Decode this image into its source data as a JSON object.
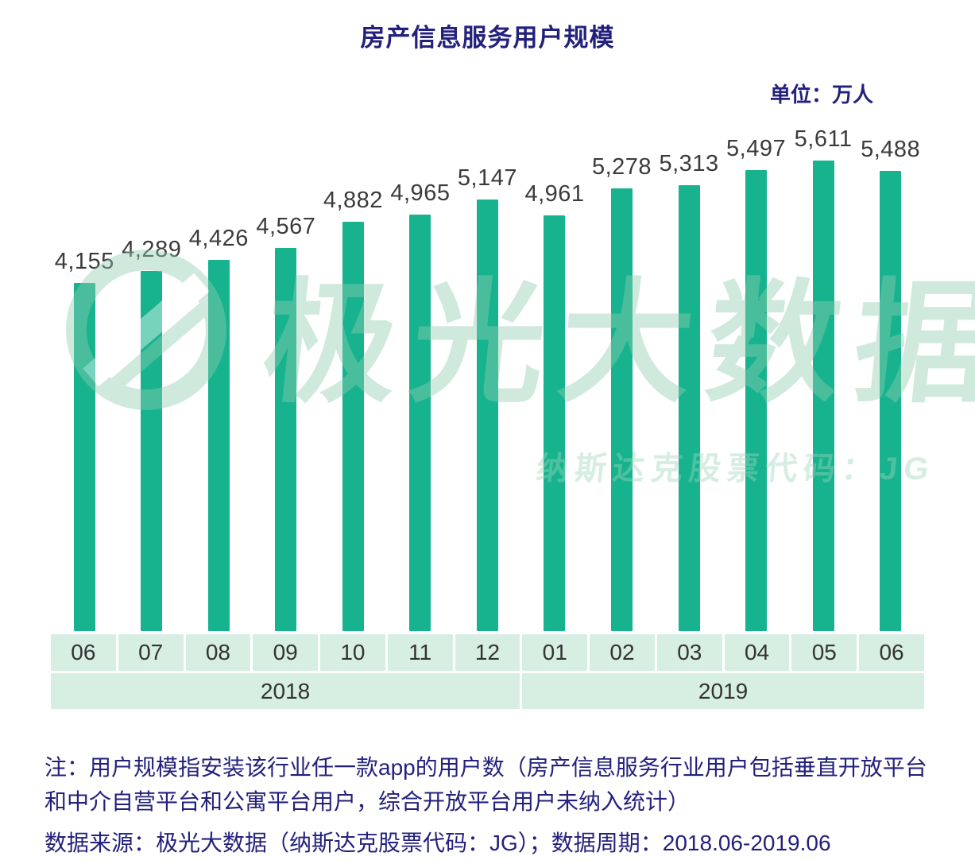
{
  "title": "房产信息服务用户规模",
  "unit_label": "单位：万人",
  "watermark": {
    "text": "极光大数据",
    "subtext": "纳斯达克股票代码：JG"
  },
  "chart_data": {
    "type": "bar",
    "title": "房产信息服务用户规模",
    "ylabel": "万人",
    "ylim": [
      0,
      5800
    ],
    "grid": false,
    "legend": "none",
    "bar_color": "#16b38e",
    "categories": [
      "06",
      "07",
      "08",
      "09",
      "10",
      "11",
      "12",
      "01",
      "02",
      "03",
      "04",
      "05",
      "06"
    ],
    "values": [
      4155,
      4289,
      4426,
      4567,
      4882,
      4965,
      5147,
      4961,
      5278,
      5313,
      5497,
      5611,
      5488
    ],
    "value_labels": [
      "4,155",
      "4,289",
      "4,426",
      "4,567",
      "4,882",
      "4,965",
      "5,147",
      "4,961",
      "5,278",
      "5,313",
      "5,497",
      "5,611",
      "5,488"
    ],
    "year_groups": [
      {
        "label": "2018",
        "span": 7
      },
      {
        "label": "2019",
        "span": 6
      }
    ]
  },
  "notes": {
    "note1": "注：用户规模指安装该行业任一款app的用户数（房产信息服务行业用户包括垂直开放平台和中介自营平台和公寓平台用户，综合开放平台用户未纳入统计）",
    "note2": "数据来源：极光大数据（纳斯达克股票代码：JG）；数据周期：2018.06-2019.06"
  },
  "colors": {
    "bar": "#16b38e",
    "title_text": "#23217c",
    "note_text": "#23217c",
    "axis_cell_bg": "#d7eee3",
    "axis_text": "#333333",
    "value_text": "#3b3b3b",
    "watermark": "#8fcdb0"
  }
}
